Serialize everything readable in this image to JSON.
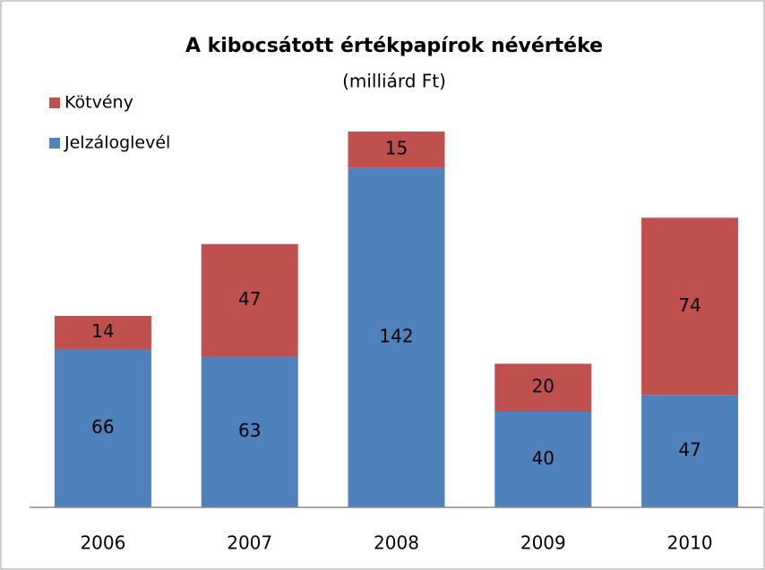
{
  "chart_data": {
    "type": "stacked_bar",
    "title": "A kibocsátott értékpapírok névértéke",
    "subtitle": "(milliárd Ft)",
    "categories": [
      "2006",
      "2007",
      "2008",
      "2009",
      "2010"
    ],
    "series": [
      {
        "name": "Jelzáloglevél",
        "color": "#4f81bd",
        "values": [
          66,
          63,
          142,
          40,
          47
        ]
      },
      {
        "name": "Kötvény",
        "color": "#c0504d",
        "values": [
          14,
          47,
          15,
          20,
          74
        ]
      }
    ],
    "legend": "top-left"
  }
}
